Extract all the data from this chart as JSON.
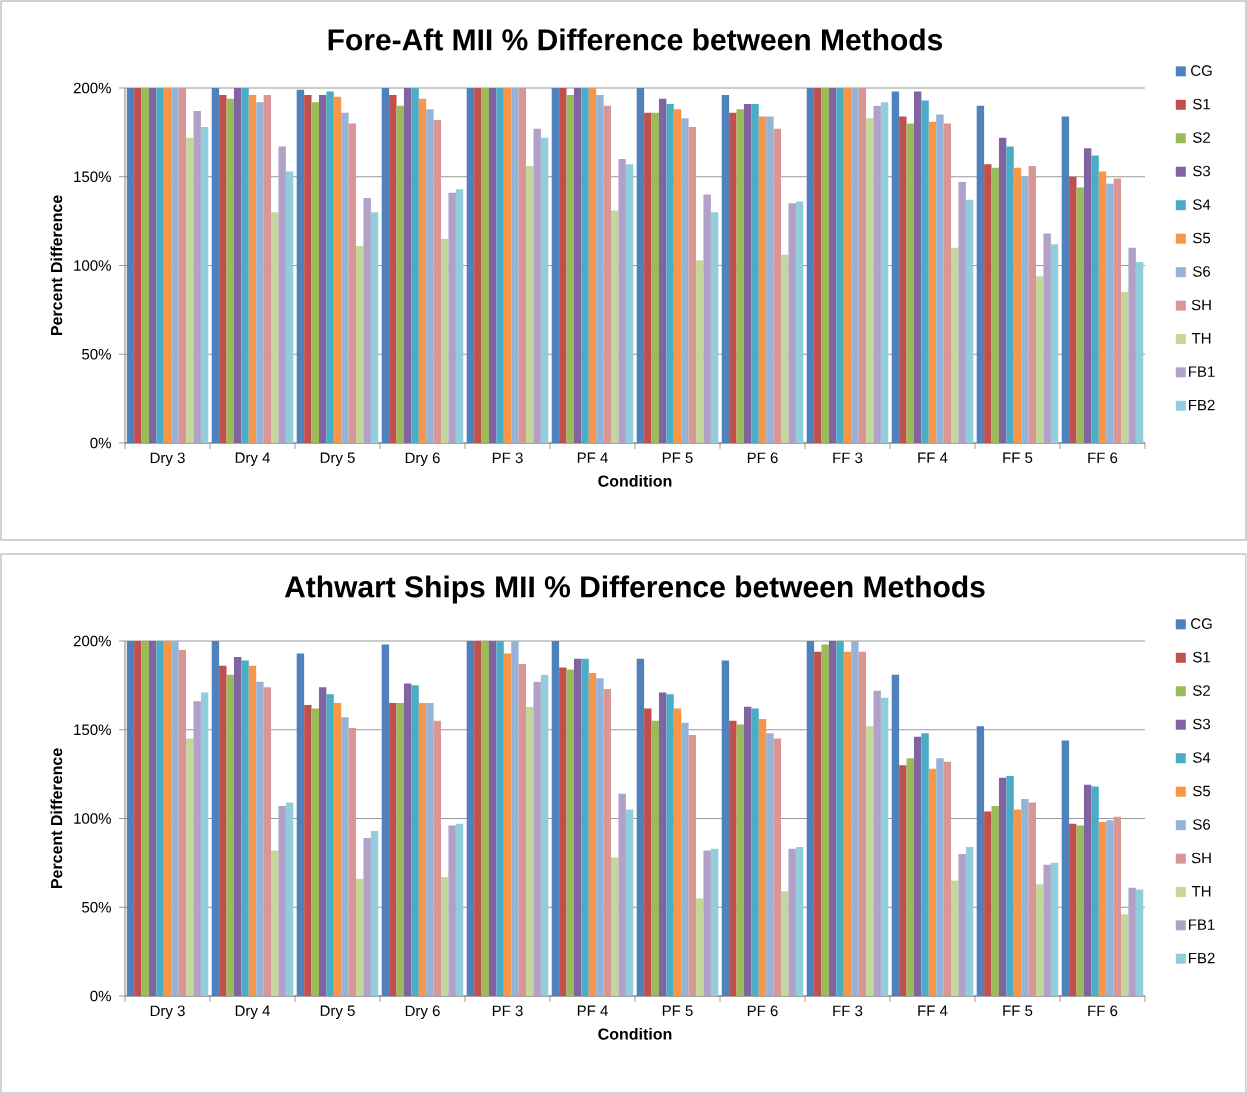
{
  "chart_data": [
    {
      "type": "bar",
      "title": "Fore-Aft MII % Difference between Methods",
      "xlabel": "Condition",
      "ylabel": "Percent Difference",
      "categories": [
        "Dry 3",
        "Dry 4",
        "Dry 5",
        "Dry 6",
        "PF 3",
        "PF 4",
        "PF 5",
        "PF 6",
        "FF 3",
        "FF 4",
        "FF 5",
        "FF 6"
      ],
      "ylim": [
        0,
        200
      ],
      "yticks": [
        {
          "value": 0,
          "label": "0%"
        },
        {
          "value": 50,
          "label": "50%"
        },
        {
          "value": 100,
          "label": "100%"
        },
        {
          "value": 150,
          "label": "150%"
        },
        {
          "value": 200,
          "label": "200%"
        }
      ],
      "grid": "y",
      "legend": "right",
      "series": [
        {
          "name": "CG",
          "color": "#4f81bd",
          "values": [
            200,
            200,
            199,
            200,
            200,
            200,
            200,
            196,
            200,
            198,
            190,
            184
          ]
        },
        {
          "name": "S1",
          "color": "#c0504d",
          "values": [
            200,
            196,
            196,
            196,
            200,
            200,
            186,
            186,
            200,
            184,
            157,
            150
          ]
        },
        {
          "name": "S2",
          "color": "#9bbb59",
          "values": [
            200,
            194,
            192,
            190,
            200,
            196,
            186,
            188,
            200,
            180,
            155,
            144
          ]
        },
        {
          "name": "S3",
          "color": "#8064a2",
          "values": [
            200,
            200,
            196,
            200,
            200,
            200,
            194,
            191,
            200,
            198,
            172,
            166
          ]
        },
        {
          "name": "S4",
          "color": "#4bacc6",
          "values": [
            200,
            200,
            198,
            200,
            200,
            200,
            191,
            191,
            200,
            193,
            167,
            162
          ]
        },
        {
          "name": "S5",
          "color": "#f79646",
          "values": [
            200,
            196,
            195,
            194,
            200,
            200,
            188,
            184,
            200,
            181,
            155,
            153
          ]
        },
        {
          "name": "S6",
          "color": "#95b3d7",
          "values": [
            200,
            192,
            186,
            188,
            200,
            196,
            183,
            184,
            200,
            185,
            150,
            146
          ]
        },
        {
          "name": "SH",
          "color": "#da9694",
          "values": [
            200,
            196,
            180,
            182,
            200,
            190,
            178,
            177,
            200,
            180,
            156,
            149
          ]
        },
        {
          "name": "TH",
          "color": "#c4d79b",
          "values": [
            172,
            130,
            111,
            115,
            156,
            131,
            103,
            106,
            183,
            110,
            94,
            85
          ]
        },
        {
          "name": "FB1",
          "color": "#b1a0c7",
          "values": [
            187,
            167,
            138,
            141,
            177,
            160,
            140,
            135,
            190,
            147,
            118,
            110
          ]
        },
        {
          "name": "FB2",
          "color": "#92cddc",
          "values": [
            178,
            153,
            130,
            143,
            172,
            157,
            130,
            136,
            192,
            137,
            112,
            102
          ]
        }
      ]
    },
    {
      "type": "bar",
      "title": "Athwart Ships MII % Difference between Methods",
      "xlabel": "Condition",
      "ylabel": "Percent Difference",
      "categories": [
        "Dry 3",
        "Dry 4",
        "Dry 5",
        "Dry 6",
        "PF 3",
        "PF 4",
        "PF 5",
        "PF 6",
        "FF 3",
        "FF 4",
        "FF 5",
        "FF 6"
      ],
      "ylim": [
        0,
        200
      ],
      "yticks": [
        {
          "value": 0,
          "label": "0%"
        },
        {
          "value": 50,
          "label": "50%"
        },
        {
          "value": 100,
          "label": "100%"
        },
        {
          "value": 150,
          "label": "150%"
        },
        {
          "value": 200,
          "label": "200%"
        }
      ],
      "grid": "y",
      "legend": "right",
      "series": [
        {
          "name": "CG",
          "color": "#4f81bd",
          "values": [
            200,
            200,
            193,
            198,
            200,
            200,
            190,
            189,
            200,
            181,
            152,
            144
          ]
        },
        {
          "name": "S1",
          "color": "#c0504d",
          "values": [
            200,
            186,
            164,
            165,
            200,
            185,
            162,
            155,
            194,
            130,
            104,
            97
          ]
        },
        {
          "name": "S2",
          "color": "#9bbb59",
          "values": [
            200,
            181,
            162,
            165,
            200,
            184,
            155,
            153,
            198,
            134,
            107,
            96
          ]
        },
        {
          "name": "S3",
          "color": "#8064a2",
          "values": [
            200,
            191,
            174,
            176,
            200,
            190,
            171,
            163,
            200,
            146,
            123,
            119
          ]
        },
        {
          "name": "S4",
          "color": "#4bacc6",
          "values": [
            200,
            189,
            170,
            175,
            200,
            190,
            170,
            162,
            200,
            148,
            124,
            118
          ]
        },
        {
          "name": "S5",
          "color": "#f79646",
          "values": [
            200,
            186,
            165,
            165,
            193,
            182,
            162,
            156,
            194,
            128,
            105,
            98
          ]
        },
        {
          "name": "S6",
          "color": "#95b3d7",
          "values": [
            200,
            177,
            157,
            165,
            200,
            179,
            154,
            148,
            200,
            134,
            111,
            99
          ]
        },
        {
          "name": "SH",
          "color": "#da9694",
          "values": [
            195,
            174,
            151,
            155,
            187,
            173,
            147,
            145,
            194,
            132,
            109,
            101
          ]
        },
        {
          "name": "TH",
          "color": "#c4d79b",
          "values": [
            145,
            82,
            66,
            67,
            163,
            78,
            55,
            59,
            152,
            65,
            63,
            46
          ]
        },
        {
          "name": "FB1",
          "color": "#b1a0c7",
          "values": [
            166,
            107,
            89,
            96,
            177,
            114,
            82,
            83,
            172,
            80,
            74,
            61
          ]
        },
        {
          "name": "FB2",
          "color": "#92cddc",
          "values": [
            171,
            109,
            93,
            97,
            181,
            105,
            83,
            84,
            168,
            84,
            75,
            60
          ]
        }
      ]
    }
  ]
}
